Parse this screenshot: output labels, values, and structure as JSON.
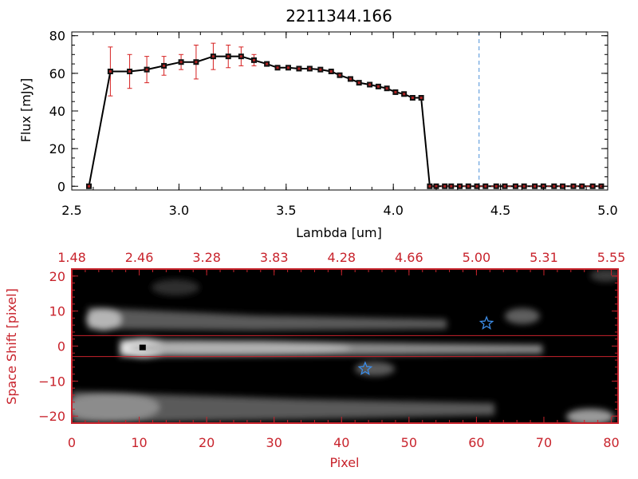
{
  "chart_data": [
    {
      "type": "line",
      "title": "2211344.166",
      "xlabel": "Lambda [um]",
      "ylabel": "Flux [mJy]",
      "xlim": [
        2.5,
        5.0
      ],
      "ylim": [
        -2,
        82
      ],
      "xticks": [
        2.5,
        3.0,
        3.5,
        4.0,
        4.5,
        5.0
      ],
      "xtick_labels": [
        "2.5",
        "3.0",
        "3.5",
        "4.0",
        "4.5",
        "5.0"
      ],
      "yticks": [
        0,
        20,
        40,
        60,
        80
      ],
      "ytick_labels": [
        "0",
        "20",
        "40",
        "60",
        "80"
      ],
      "grid": false,
      "vline_x": 4.4,
      "colors": {
        "line": "#000000",
        "marker": "#b22222",
        "error": "#d62020",
        "vline": "#4a90d9"
      },
      "series": [
        {
          "x": [
            2.58,
            2.68,
            2.77,
            2.85,
            2.93,
            3.01,
            3.08,
            3.16,
            3.23,
            3.29,
            3.35,
            3.41,
            3.46,
            3.51,
            3.56,
            3.61,
            3.66,
            3.71,
            3.75,
            3.8,
            3.84,
            3.89,
            3.93,
            3.97,
            4.01,
            4.05,
            4.09,
            4.13,
            4.17,
            4.2,
            4.24,
            4.27,
            4.31,
            4.35,
            4.39,
            4.43,
            4.48,
            4.52,
            4.57,
            4.61,
            4.66,
            4.7,
            4.75,
            4.79,
            4.84,
            4.88,
            4.93,
            4.97
          ],
          "values": [
            0,
            61,
            61,
            62,
            64,
            66,
            66,
            69,
            69,
            69,
            67,
            65,
            63,
            63,
            62.5,
            62.5,
            62,
            61,
            59,
            57,
            55,
            54,
            53,
            52,
            50,
            49,
            47,
            47,
            0,
            0,
            0,
            0,
            0,
            0,
            0,
            0,
            0,
            0,
            0,
            0,
            0,
            0,
            0,
            0,
            0,
            0,
            0,
            0
          ],
          "errors": [
            0,
            13,
            9,
            7,
            5,
            4,
            9,
            7,
            6,
            5,
            3,
            1,
            1,
            1,
            1,
            1,
            1,
            1,
            1,
            1,
            1,
            1,
            1,
            1,
            1,
            1,
            1,
            1,
            0,
            0,
            0,
            0,
            0,
            0,
            0,
            0,
            0,
            0,
            0,
            0,
            0,
            0,
            0,
            0,
            0,
            0,
            0,
            0
          ]
        }
      ]
    },
    {
      "type": "heatmap",
      "xlabel": "Pixel",
      "ylabel": "Space Shift [pixel]",
      "xlim": [
        0,
        81
      ],
      "ylim": [
        -22,
        22
      ],
      "xticks": [
        0,
        10,
        20,
        30,
        40,
        50,
        60,
        70,
        80
      ],
      "xtick_labels": [
        "0",
        "10",
        "20",
        "30",
        "40",
        "50",
        "60",
        "70",
        "80"
      ],
      "yticks": [
        -20,
        -10,
        0,
        10,
        20
      ],
      "ytick_labels": [
        "−20",
        "−10",
        "0",
        "10",
        "20"
      ],
      "top_ticks": [
        0,
        10,
        20,
        30,
        40,
        50,
        60,
        70,
        80
      ],
      "top_tick_labels": [
        "1.48",
        "2.46",
        "3.28",
        "3.83",
        "4.28",
        "4.66",
        "5.00",
        "5.31",
        "5.55"
      ],
      "aperture_lines_y": [
        3,
        -3
      ],
      "stars": [
        {
          "x": 43.5,
          "y": -6.5
        },
        {
          "x": 61.5,
          "y": 6.5
        }
      ],
      "black_marker": {
        "x": 10.5,
        "y": -0.5
      },
      "colors": {
        "frame": "#c8232c",
        "aperture": "#c8232c",
        "star": "#3c8ce6",
        "background": "#000000"
      }
    }
  ]
}
